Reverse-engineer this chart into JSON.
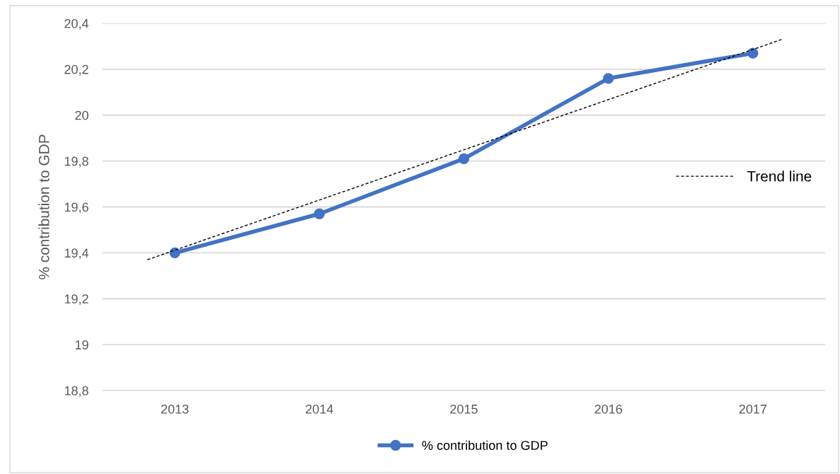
{
  "chart_data": {
    "type": "line",
    "ylabel": "% contribution to GDP",
    "x": [
      2013,
      2014,
      2015,
      2016,
      2017
    ],
    "series": [
      {
        "name": "% contribution to GDP",
        "color": "#4472c4",
        "values": [
          19.4,
          19.57,
          19.81,
          20.16,
          20.27
        ],
        "marker": "circle",
        "line_style": "solid"
      },
      {
        "name": "Trend line",
        "color": "#000000",
        "x": [
          2012.81,
          2017.2
        ],
        "values": [
          19.37,
          20.33
        ],
        "marker": "none",
        "line_style": "dashed"
      }
    ],
    "xlim": [
      2012.5,
      2017.5
    ],
    "xticks": [
      2013,
      2014,
      2015,
      2016,
      2017
    ],
    "ylim": [
      18.8,
      20.4
    ],
    "yticks": [
      {
        "value": 18.8,
        "label": "18,8"
      },
      {
        "value": 19,
        "label": "19"
      },
      {
        "value": 19.2,
        "label": "19,2"
      },
      {
        "value": 19.4,
        "label": "19,4"
      },
      {
        "value": 19.6,
        "label": "19,6"
      },
      {
        "value": 19.8,
        "label": "19,8"
      },
      {
        "value": 20,
        "label": "20"
      },
      {
        "value": 20.2,
        "label": "20,2"
      },
      {
        "value": 20.4,
        "label": "20,4"
      }
    ],
    "grid": "y",
    "legend": "bottom"
  }
}
